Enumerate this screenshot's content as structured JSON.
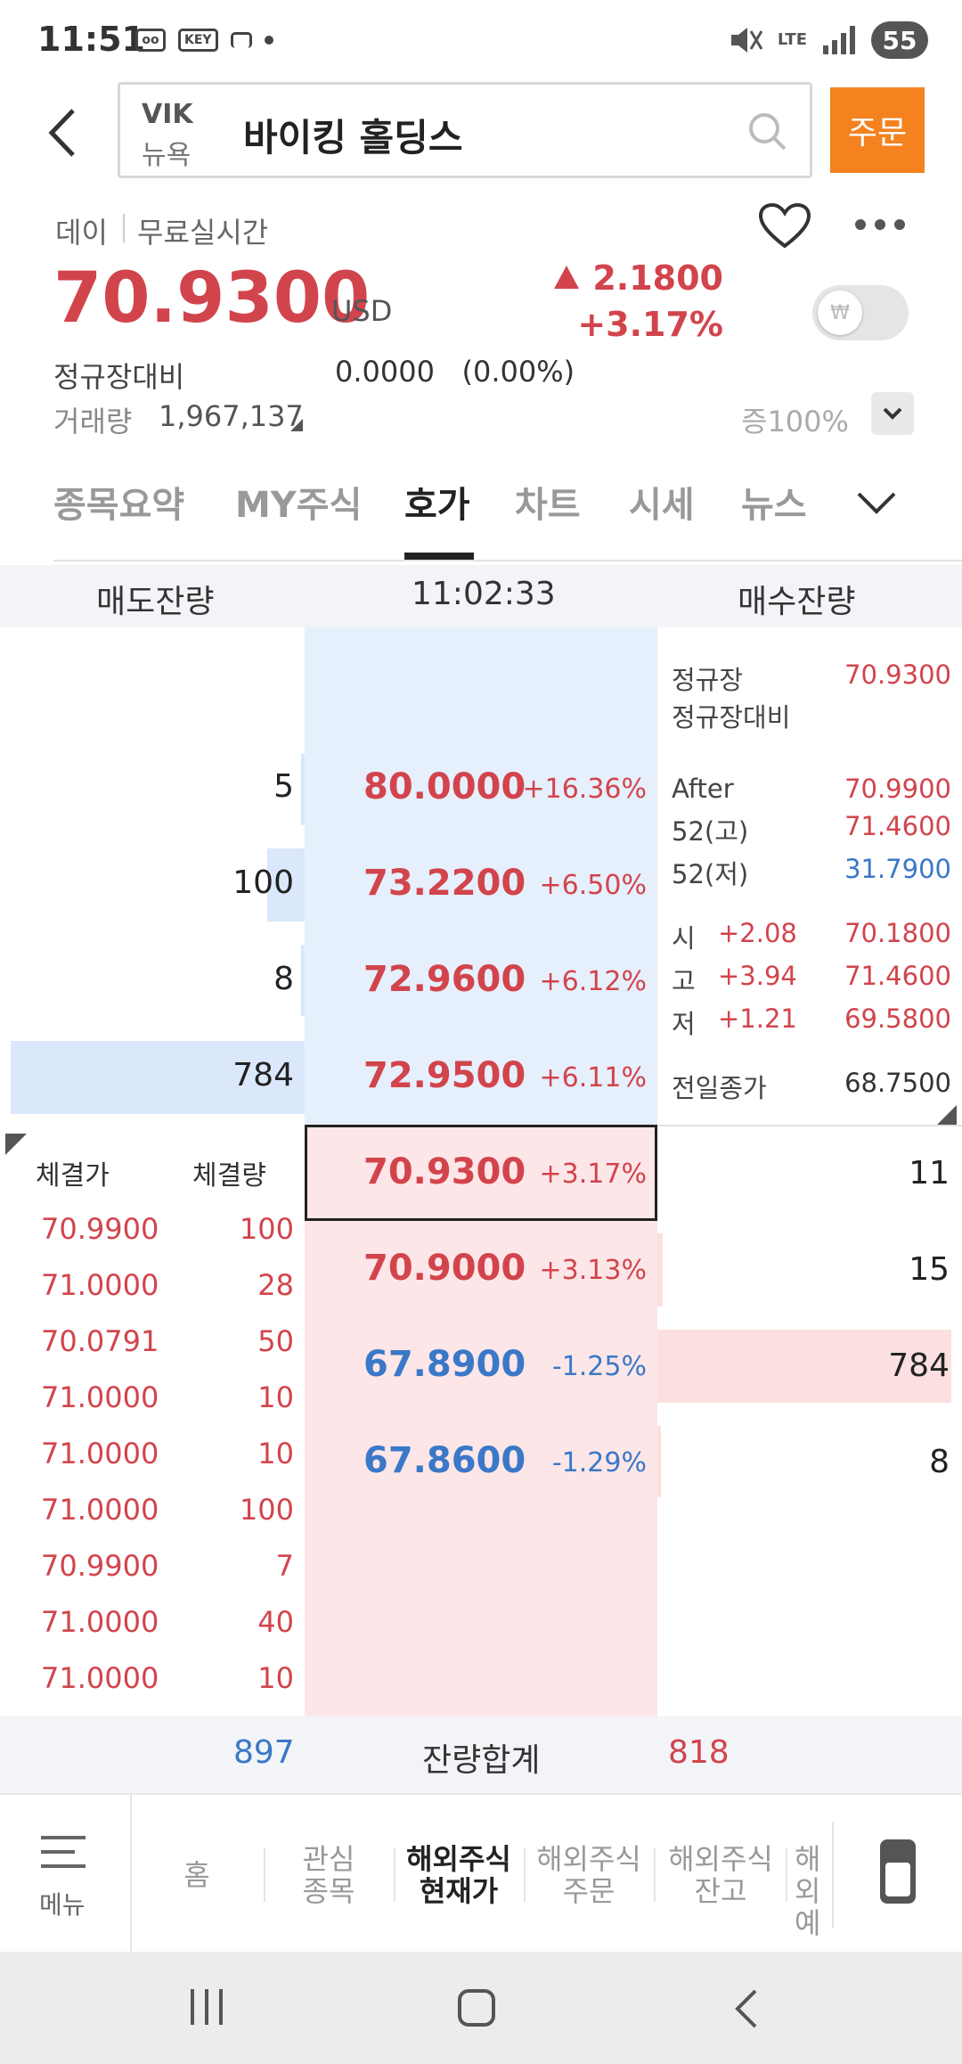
{
  "status_bar": {
    "time": "11:51",
    "key_label": "KEY",
    "battery": "55",
    "network": "LTE"
  },
  "header": {
    "ticker": "VIK",
    "exchange": "뉴욕",
    "stock_name": "바이킹 홀딩스",
    "order_label": "주문"
  },
  "summary": {
    "day": "데이",
    "free_realtime": "무료실시간",
    "price": "70.9300",
    "currency": "USD",
    "change_abs": "2.1800",
    "change_pct": "+3.17%",
    "regular_label": "정규장대비",
    "regular_value": "0.0000",
    "regular_pct": "(0.00%)",
    "volume_label": "거래량",
    "volume_value": "1,967,137",
    "margin_label": "증100%"
  },
  "tabs": [
    "종목요약",
    "MY주식",
    "호가",
    "차트",
    "시세",
    "뉴스"
  ],
  "orderbook": {
    "sell_header": "매도잔량",
    "time": "11:02:33",
    "buy_header": "매수잔량",
    "asks": [
      {
        "qty": "5",
        "price": "80.0000",
        "pct": "+16.36%",
        "fill": 0.01
      },
      {
        "qty": "100",
        "price": "73.2200",
        "pct": "+6.50%",
        "fill": 0.13
      },
      {
        "qty": "8",
        "price": "72.9600",
        "pct": "+6.12%",
        "fill": 0.01
      },
      {
        "qty": "784",
        "price": "72.9500",
        "pct": "+6.11%",
        "fill": 1.0
      }
    ],
    "bids": [
      {
        "qty": "11",
        "price": "70.9300",
        "pct": "+3.17%",
        "fill": 0.01
      },
      {
        "qty": "15",
        "price": "70.9000",
        "pct": "+3.13%",
        "fill": 0.02
      },
      {
        "qty": "784",
        "price": "67.8900",
        "pct": "-1.25%",
        "fill": 1.0
      },
      {
        "qty": "8",
        "price": "67.8600",
        "pct": "-1.29%",
        "fill": 0.01
      }
    ],
    "info": {
      "regular_label": "정규장",
      "regular_value": "70.9300",
      "regular_diff_label": "정규장대비",
      "after_label": "After",
      "after_value": "70.9900",
      "high52_label": "52(고)",
      "high52_value": "71.4600",
      "low52_label": "52(저)",
      "low52_value": "31.7900",
      "open_label": "시",
      "open_change": "+2.08",
      "open_value": "70.1800",
      "high_label": "고",
      "high_change": "+3.94",
      "high_value": "71.4600",
      "low_label": "저",
      "low_change": "+1.21",
      "low_value": "69.5800",
      "prev_close_label": "전일종가",
      "prev_close_value": "68.7500"
    },
    "executions_header": {
      "price": "체결가",
      "qty": "체결량"
    },
    "executions": [
      {
        "price": "70.9900",
        "qty": "100"
      },
      {
        "price": "71.0000",
        "qty": "28"
      },
      {
        "price": "70.0791",
        "qty": "50"
      },
      {
        "price": "71.0000",
        "qty": "10"
      },
      {
        "price": "71.0000",
        "qty": "10"
      },
      {
        "price": "71.0000",
        "qty": "100"
      },
      {
        "price": "70.9900",
        "qty": "7"
      },
      {
        "price": "71.0000",
        "qty": "40"
      },
      {
        "price": "71.0000",
        "qty": "10"
      }
    ],
    "totals": {
      "sell": "897",
      "label": "잔량합계",
      "buy": "818"
    }
  },
  "bottom_nav": {
    "menu": "메뉴",
    "items": [
      {
        "line1": "홈",
        "line2": ""
      },
      {
        "line1": "관심",
        "line2": "종목"
      },
      {
        "line1": "해외주식",
        "line2": "현재가"
      },
      {
        "line1": "해외주식",
        "line2": "주문"
      },
      {
        "line1": "해외주식",
        "line2": "잔고"
      },
      {
        "line1": "해외",
        "line2": "예"
      }
    ]
  },
  "colors": {
    "up": "#d2444c",
    "down": "#3a78c8",
    "accent": "#f3821f",
    "ask_bg": "#e6effc",
    "bid_bg": "#fde6e7"
  }
}
